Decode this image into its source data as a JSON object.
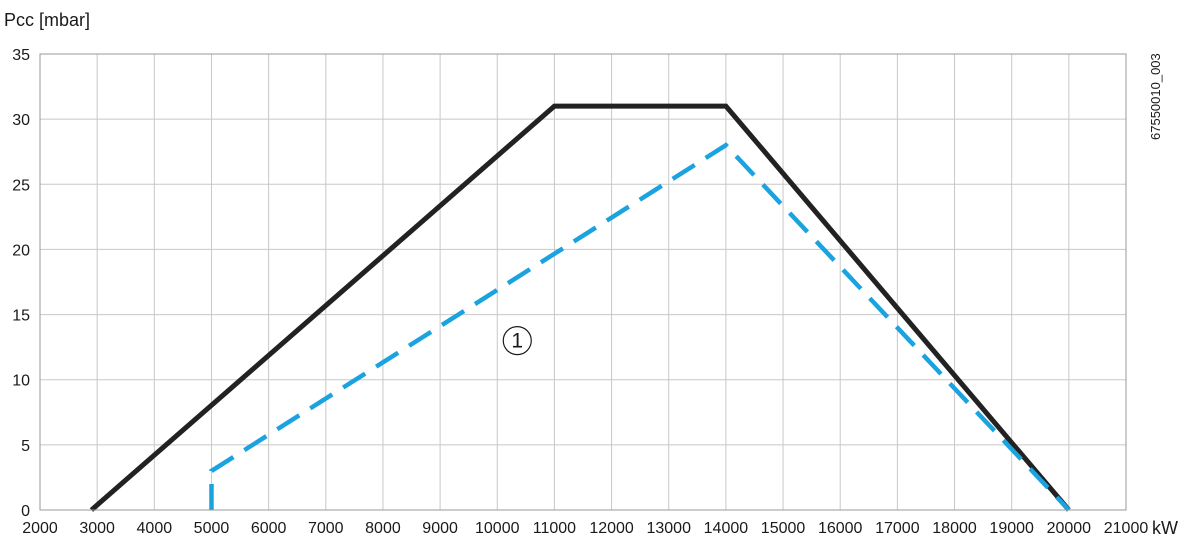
{
  "chart_data": {
    "type": "line",
    "ylabel": "Pcc [mbar]",
    "xlabel": "kW",
    "doc_code": "67550010_003",
    "xlim": [
      2000,
      21000
    ],
    "ylim": [
      0,
      35
    ],
    "x_ticks": [
      "2000",
      "3000",
      "4000",
      "5000",
      "6000",
      "7000",
      "8000",
      "9000",
      "10000",
      "11000",
      "12000",
      "13000",
      "14000",
      "15000",
      "16000",
      "17000",
      "18000",
      "19000",
      "20000",
      "21000"
    ],
    "y_ticks": [
      "0",
      "5",
      "10",
      "15",
      "20",
      "25",
      "30",
      "35"
    ],
    "grid": true,
    "series": [
      {
        "style": "solid",
        "color": "#222222",
        "points": [
          [
            2900,
            0
          ],
          [
            11000,
            31
          ],
          [
            14000,
            31
          ],
          [
            20000,
            0
          ]
        ]
      },
      {
        "style": "dashed",
        "color": "#1aa3df",
        "points": [
          [
            5000,
            0
          ],
          [
            5000,
            3
          ],
          [
            14000,
            28
          ],
          [
            20000,
            0
          ]
        ]
      }
    ],
    "annotations": [
      {
        "text": "1",
        "x": 10350,
        "y": 13
      }
    ]
  }
}
